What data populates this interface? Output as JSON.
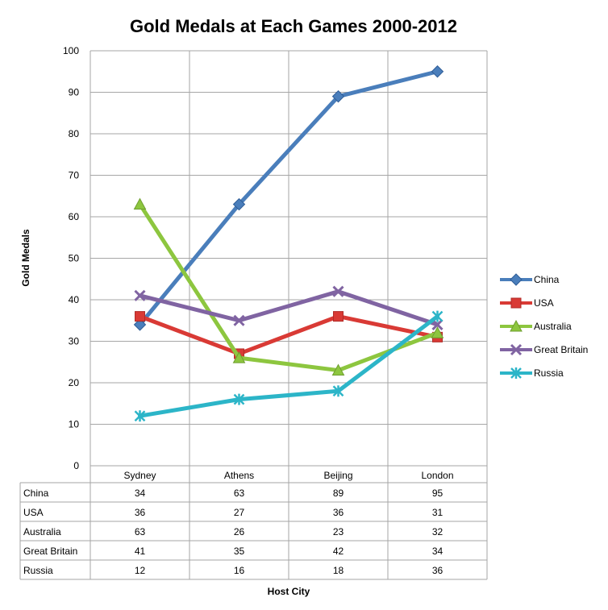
{
  "chart_data": {
    "type": "line",
    "title": "Gold Medals at Each Games 2000-2012",
    "xlabel": "Host City",
    "ylabel": "Gold Medals",
    "categories": [
      "Sydney",
      "Athens",
      "Beijing",
      "London"
    ],
    "ylim": [
      0,
      100
    ],
    "ytick_step": 10,
    "grid": true,
    "legend_position": "right",
    "data_table": true,
    "series": [
      {
        "name": "China",
        "values": [
          34,
          63,
          89,
          95
        ],
        "color": "#4a7ebb",
        "marker": "diamond"
      },
      {
        "name": "USA",
        "values": [
          36,
          27,
          36,
          31
        ],
        "color": "#d93a35",
        "marker": "square"
      },
      {
        "name": "Australia",
        "values": [
          63,
          26,
          23,
          32
        ],
        "color": "#8dc63f",
        "marker": "triangle"
      },
      {
        "name": "Great Britain",
        "values": [
          41,
          35,
          42,
          34
        ],
        "color": "#8064a2",
        "marker": "x"
      },
      {
        "name": "Russia",
        "values": [
          12,
          16,
          18,
          36
        ],
        "color": "#2cb5c8",
        "marker": "star"
      }
    ]
  }
}
